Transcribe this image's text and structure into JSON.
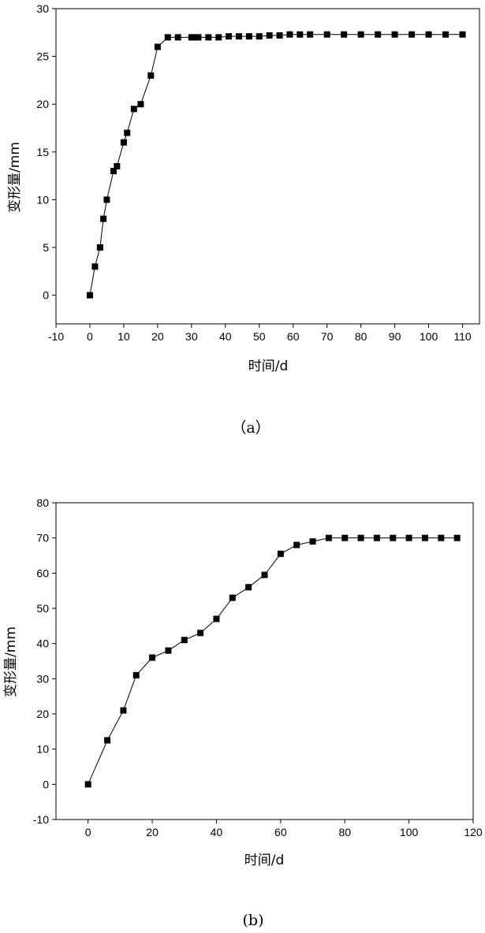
{
  "chart_data": [
    {
      "type": "line",
      "caption": "（a）",
      "xlabel": "时间/d",
      "ylabel": "变形量/mm",
      "xlim": [
        -10,
        115
      ],
      "ylim": [
        -3,
        30
      ],
      "xticks": [
        -10,
        0,
        10,
        20,
        30,
        40,
        50,
        60,
        70,
        80,
        90,
        100,
        110
      ],
      "yticks": [
        0,
        5,
        10,
        15,
        20,
        25,
        30
      ],
      "grid": false,
      "marker": "square",
      "series": [
        {
          "x": [
            0,
            1.5,
            3,
            4,
            5,
            7,
            8,
            10,
            11,
            13,
            15,
            18,
            20,
            23,
            26,
            30,
            31,
            32,
            35,
            38,
            41,
            44,
            47,
            50,
            53,
            56,
            59,
            62,
            65,
            70,
            75,
            80,
            85,
            90,
            95,
            100,
            105,
            110
          ],
          "y": [
            0,
            3,
            5,
            8,
            10,
            13,
            13.5,
            16,
            17,
            19.5,
            20,
            23,
            26,
            27,
            27,
            27,
            27,
            27,
            27,
            27,
            27.1,
            27.1,
            27.1,
            27.1,
            27.2,
            27.2,
            27.3,
            27.3,
            27.3,
            27.3,
            27.3,
            27.3,
            27.3,
            27.3,
            27.3,
            27.3,
            27.3,
            27.3
          ]
        }
      ]
    },
    {
      "type": "line",
      "caption": "(b)",
      "xlabel": "时间/d",
      "ylabel": "变形量/mm",
      "xlim": [
        -10,
        120
      ],
      "ylim": [
        -10,
        80
      ],
      "xticks": [
        0,
        20,
        40,
        60,
        80,
        100,
        120
      ],
      "yticks": [
        -10,
        0,
        10,
        20,
        30,
        40,
        50,
        60,
        70,
        80
      ],
      "grid": false,
      "marker": "square",
      "series": [
        {
          "x": [
            0,
            6,
            11,
            15,
            20,
            25,
            30,
            35,
            40,
            45,
            50,
            55,
            60,
            65,
            70,
            75,
            80,
            85,
            90,
            95,
            100,
            105,
            110,
            115
          ],
          "y": [
            0,
            12.5,
            21,
            31,
            36,
            38,
            41,
            43,
            47,
            53,
            56,
            59.5,
            65.5,
            68,
            69,
            70,
            70,
            70,
            70,
            70,
            70,
            70,
            70,
            70
          ]
        }
      ]
    }
  ]
}
